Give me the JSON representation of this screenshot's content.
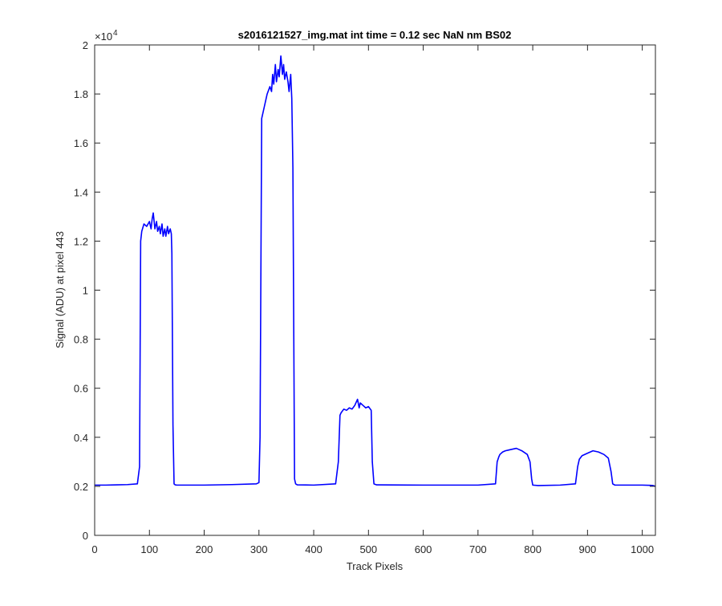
{
  "chart_data": {
    "type": "line",
    "title": "s2016121527_img.mat int time = 0.12 sec  NaN nm BS02",
    "xlabel": "Track Pixels",
    "ylabel": "Signal (ADU) at pixel 443",
    "xlim": [
      0,
      1024
    ],
    "ylim": [
      0,
      20000
    ],
    "y_exponent_label": "×10",
    "y_exponent_power": "4",
    "x_ticks": [
      0,
      100,
      200,
      300,
      400,
      500,
      600,
      700,
      800,
      900,
      1000
    ],
    "x_tick_labels": [
      "0",
      "100",
      "200",
      "300",
      "400",
      "500",
      "600",
      "700",
      "800",
      "900",
      "1000"
    ],
    "y_ticks": [
      0,
      2000,
      4000,
      6000,
      8000,
      10000,
      12000,
      14000,
      16000,
      18000,
      20000
    ],
    "y_tick_labels": [
      "0",
      "0.2",
      "0.4",
      "0.6",
      "0.8",
      "1",
      "1.2",
      "1.4",
      "1.6",
      "1.8",
      "2"
    ],
    "grid": false,
    "line_color": "#0000ff",
    "series": [
      {
        "x": [
          0,
          20,
          40,
          60,
          78,
          82,
          84,
          86,
          90,
          95,
          100,
          103,
          105,
          107,
          110,
          113,
          115,
          118,
          120,
          123,
          125,
          128,
          130,
          133,
          135,
          138,
          140,
          141,
          143,
          145,
          147,
          150,
          200,
          250,
          295,
          300,
          302,
          305,
          310,
          315,
          320,
          323,
          325,
          327,
          330,
          332,
          335,
          337,
          340,
          343,
          345,
          347,
          350,
          353,
          355,
          358,
          360,
          362,
          365,
          367,
          370,
          400,
          440,
          445,
          448,
          450,
          455,
          460,
          465,
          470,
          475,
          480,
          483,
          485,
          490,
          495,
          500,
          505,
          507,
          510,
          515,
          600,
          700,
          732,
          735,
          738,
          740,
          745,
          750,
          760,
          770,
          775,
          780,
          790,
          795,
          798,
          800,
          810,
          850,
          878,
          882,
          885,
          890,
          900,
          910,
          920,
          930,
          938,
          943,
          946,
          950,
          1000,
          1015,
          1020,
          1024
        ],
        "y": [
          2050,
          2050,
          2060,
          2070,
          2100,
          2800,
          12000,
          12400,
          12700,
          12600,
          12800,
          12500,
          12900,
          13150,
          12500,
          12800,
          12400,
          12600,
          12300,
          12700,
          12200,
          12500,
          12200,
          12600,
          12300,
          12500,
          12300,
          11500,
          4500,
          2100,
          2060,
          2050,
          2050,
          2070,
          2100,
          2150,
          4000,
          17000,
          17500,
          18000,
          18300,
          18100,
          18800,
          18400,
          19200,
          18500,
          19000,
          18700,
          19550,
          18800,
          19200,
          18600,
          18900,
          18500,
          18100,
          18800,
          17800,
          15000,
          2300,
          2100,
          2060,
          2050,
          2100,
          3000,
          4900,
          5000,
          5150,
          5100,
          5200,
          5150,
          5300,
          5550,
          5200,
          5400,
          5300,
          5200,
          5250,
          5100,
          3000,
          2100,
          2060,
          2050,
          2050,
          2100,
          3000,
          3200,
          3300,
          3400,
          3450,
          3500,
          3550,
          3500,
          3450,
          3300,
          3000,
          2300,
          2050,
          2030,
          2050,
          2100,
          2800,
          3100,
          3250,
          3350,
          3450,
          3400,
          3300,
          3150,
          2600,
          2100,
          2050,
          2050,
          2040,
          2030,
          2000
        ]
      }
    ]
  }
}
